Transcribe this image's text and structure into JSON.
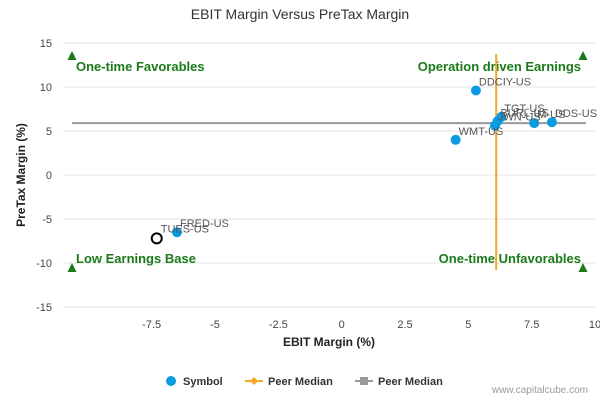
{
  "chart_data": {
    "type": "scatter",
    "title": "EBIT Margin Versus PreTax Margin",
    "xlabel": "EBIT Margin (%)",
    "ylabel": "PreTax Margin (%)",
    "xlim": [
      -11,
      10
    ],
    "ylim": [
      -15,
      15
    ],
    "x_ticks": [
      -7.5,
      -5,
      -2.5,
      0,
      2.5,
      5,
      7.5,
      10
    ],
    "x_tick_labels": [
      "-7.5",
      "-5",
      "-2.5",
      "0",
      "2.5",
      "5",
      "7.5",
      "10"
    ],
    "y_ticks": [
      15,
      10,
      5,
      0,
      -5,
      -10,
      -15
    ],
    "y_tick_labels": [
      "15",
      "10",
      "5",
      "0",
      "-5",
      "-10",
      "-15"
    ],
    "grid": true,
    "points": [
      {
        "label": "DDS-US",
        "x": 8.3,
        "y": 6.0
      },
      {
        "label": "M-US",
        "x": 7.6,
        "y": 5.9
      },
      {
        "label": "TGT-US",
        "x": 6.3,
        "y": 6.6
      },
      {
        "label": "BURL-US",
        "x": 6.15,
        "y": 6.1
      },
      {
        "label": "JWN-US",
        "x": 6.05,
        "y": 5.6
      },
      {
        "label": "DDCIY-US",
        "x": 5.3,
        "y": 9.6
      },
      {
        "label": "WMT-US",
        "x": 4.5,
        "y": 4.0
      },
      {
        "label": "FRED-US",
        "x": -6.5,
        "y": -6.5
      }
    ],
    "highlight": {
      "label": "TUES-US",
      "x": -7.3,
      "y": -7.2
    },
    "peer_median_x": 6.1,
    "peer_median_y": 5.9,
    "quadrant_labels": {
      "top_left": "One-time Favorables",
      "top_right": "Operation driven Earnings",
      "bottom_left": "Low Earnings Base",
      "bottom_right": "One-time Unfavorables"
    },
    "legend": [
      {
        "name": "Symbol",
        "color": "#0b9be3",
        "marker": "circle"
      },
      {
        "name": "Peer Median",
        "color": "#f5a623",
        "marker": "line-diamond"
      },
      {
        "name": "Peer Median",
        "color": "#999999",
        "marker": "line-square"
      }
    ],
    "legend_position": "bottom-center",
    "colors": {
      "point": "#0b9be3",
      "median_vertical": "#f5a623",
      "median_horizontal": "#999999",
      "quadrant_text": "#1a7a1a",
      "triangle": "#1a7a1a",
      "highlight_stroke": "#000000"
    }
  },
  "watermark": "www.capitalcube.com"
}
